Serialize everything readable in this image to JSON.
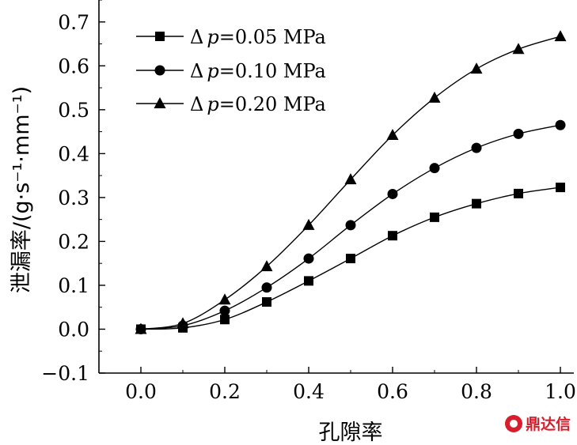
{
  "chart_data": {
    "type": "line",
    "x": [
      0.0,
      0.1,
      0.2,
      0.3,
      0.4,
      0.5,
      0.6,
      0.7,
      0.8,
      0.9,
      1.0
    ],
    "series": [
      {
        "name": "Δp=0.05 MPa",
        "marker": "square",
        "values": [
          0.0,
          0.003,
          0.022,
          0.062,
          0.11,
          0.161,
          0.213,
          0.255,
          0.286,
          0.309,
          0.323
        ]
      },
      {
        "name": "Δp=0.10 MPa",
        "marker": "circle",
        "values": [
          0.0,
          0.008,
          0.042,
          0.095,
          0.161,
          0.237,
          0.308,
          0.367,
          0.413,
          0.445,
          0.465
        ]
      },
      {
        "name": "Δp=0.20 MPa",
        "marker": "triangle",
        "values": [
          0.0,
          0.013,
          0.067,
          0.143,
          0.237,
          0.341,
          0.442,
          0.527,
          0.593,
          0.638,
          0.667
        ]
      }
    ],
    "xlabel": "孔隙率",
    "ylabel": "泄漏率/(g·s⁻¹·mm⁻¹)",
    "xlim": [
      -0.1,
      1.0
    ],
    "ylim": [
      -0.1,
      0.75
    ],
    "xticks": [
      "0.0",
      "0.2",
      "0.4",
      "0.6",
      "0.8",
      "1.0"
    ],
    "yticks": [
      "−0.1",
      "0.0",
      "0.1",
      "0.2",
      "0.3",
      "0.4",
      "0.5",
      "0.6",
      "0.7"
    ],
    "grid": false,
    "legend_position": "top-left"
  },
  "legend": [
    {
      "delta": "Δ",
      "var": "p",
      "rest": "=0.05 MPa"
    },
    {
      "delta": "Δ",
      "var": "p",
      "rest": "=0.10 MPa"
    },
    {
      "delta": "Δ",
      "var": "p",
      "rest": "=0.20 MPa"
    }
  ],
  "watermark": {
    "text": "鼎达信"
  }
}
